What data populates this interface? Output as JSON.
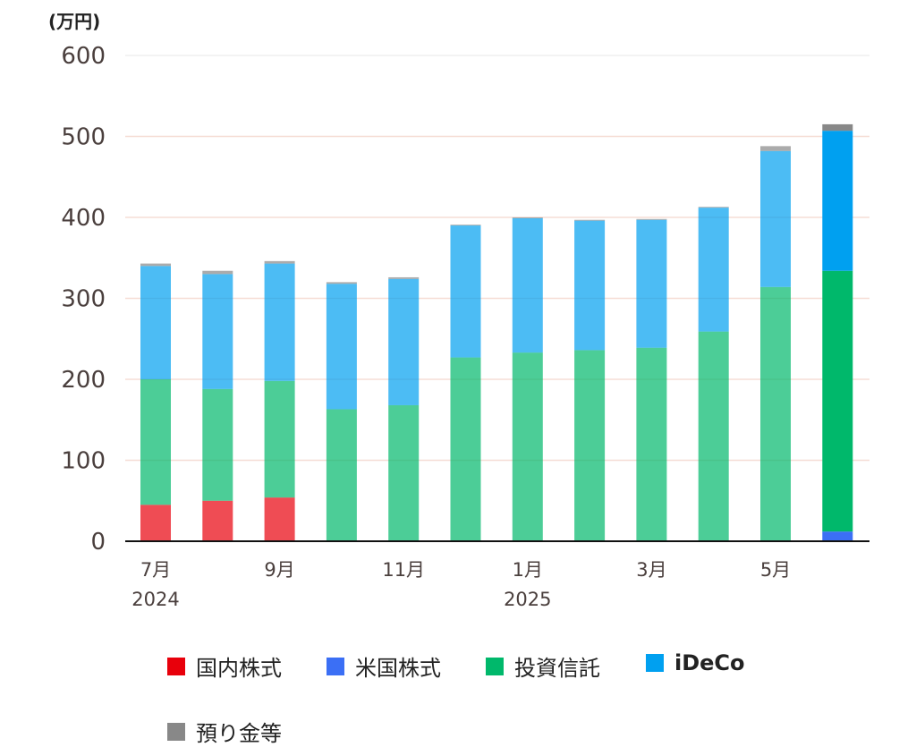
{
  "chart_data": {
    "type": "bar",
    "stacked": true,
    "unit_label": "(万円)",
    "x_labels": [
      {
        "index": 0,
        "month": "7月",
        "year": "2024"
      },
      {
        "index": 2,
        "month": "9月",
        "year": ""
      },
      {
        "index": 4,
        "month": "11月",
        "year": ""
      },
      {
        "index": 6,
        "month": "1月",
        "year": "2025"
      },
      {
        "index": 8,
        "month": "3月",
        "year": ""
      },
      {
        "index": 10,
        "month": "5月",
        "year": ""
      }
    ],
    "categories": [
      "2024-07",
      "2024-08",
      "2024-09",
      "2024-10",
      "2024-11",
      "2024-12",
      "2025-01",
      "2025-02",
      "2025-03",
      "2025-04",
      "2025-05",
      "2025-06"
    ],
    "yticks": [
      "600",
      "500",
      "400",
      "300",
      "200",
      "100",
      "0"
    ],
    "ylim": [
      0,
      600
    ],
    "series": [
      {
        "name": "国内株式",
        "color": "#e8000b",
        "values": [
          45,
          50,
          54,
          0,
          0,
          0,
          0,
          0,
          0,
          0,
          0,
          0
        ]
      },
      {
        "name": "米国株式",
        "color": "#3b6ff5",
        "values": [
          0,
          0,
          0,
          0,
          0,
          0,
          0,
          0,
          0,
          0,
          0,
          12
        ]
      },
      {
        "name": "投資信託",
        "color": "#00b86b",
        "values": [
          155,
          138,
          144,
          163,
          168,
          227,
          233,
          236,
          239,
          259,
          314,
          322
        ]
      },
      {
        "name": "iDeCo",
        "color": "#00a0f0",
        "values": [
          140,
          142,
          145,
          155,
          156,
          163,
          166,
          160,
          158,
          153,
          168,
          173
        ]
      },
      {
        "name": "預り金等",
        "color": "#888888",
        "values": [
          3,
          4,
          3,
          2,
          2,
          1,
          1,
          1,
          1,
          1,
          6,
          8
        ]
      }
    ],
    "highlight_last": true,
    "grid": true,
    "legend_position": "bottom"
  }
}
